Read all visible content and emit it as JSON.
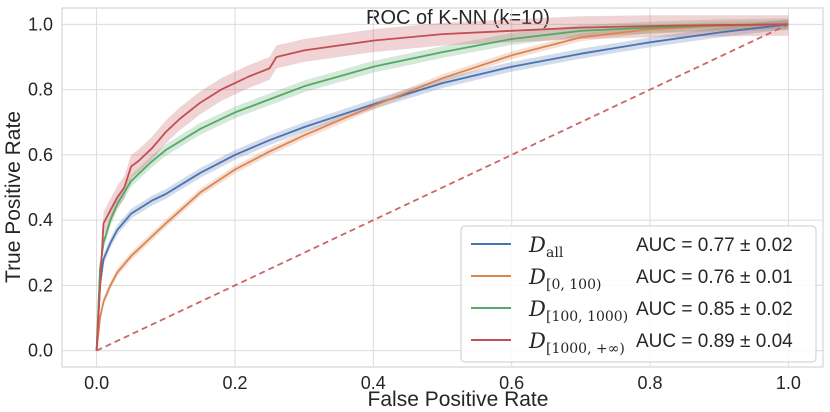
{
  "chart_data": {
    "type": "line",
    "title": "ROC of K-NN (k=10)",
    "xlabel": "False Positive Rate",
    "ylabel": "True Positive Rate",
    "xlim": [
      -0.05,
      1.05
    ],
    "ylim": [
      -0.05,
      1.05
    ],
    "xticks": [
      0.0,
      0.2,
      0.4,
      0.6,
      0.8,
      1.0
    ],
    "yticks": [
      0.0,
      0.2,
      0.4,
      0.6,
      0.8,
      1.0
    ],
    "xtick_labels": [
      "0.0",
      "0.2",
      "0.4",
      "0.6",
      "0.8",
      "1.0"
    ],
    "ytick_labels": [
      "0.0",
      "0.2",
      "0.4",
      "0.6",
      "0.8",
      "1.0"
    ],
    "grid": true,
    "legend_position": "lower-right",
    "series": [
      {
        "name": "D_all",
        "label_main": "D",
        "label_sub": "all",
        "auc": "AUC = 0.77 ± 0.02",
        "color": "#4c72b0",
        "x": [
          0,
          0.005,
          0.01,
          0.02,
          0.03,
          0.05,
          0.08,
          0.1,
          0.15,
          0.2,
          0.25,
          0.3,
          0.35,
          0.4,
          0.5,
          0.6,
          0.7,
          0.8,
          0.9,
          1.0
        ],
        "y": [
          0,
          0.2,
          0.28,
          0.33,
          0.37,
          0.42,
          0.46,
          0.48,
          0.545,
          0.6,
          0.645,
          0.685,
          0.72,
          0.755,
          0.82,
          0.87,
          0.91,
          0.945,
          0.975,
          1.0
        ],
        "band": 0.015
      },
      {
        "name": "D_[0,100)",
        "label_main": "D",
        "label_sub": "[0, 100)",
        "auc": "AUC = 0.76 ± 0.01",
        "color": "#dd8452",
        "x": [
          0,
          0.005,
          0.01,
          0.02,
          0.03,
          0.05,
          0.08,
          0.1,
          0.15,
          0.2,
          0.25,
          0.3,
          0.35,
          0.4,
          0.5,
          0.6,
          0.7,
          0.8,
          0.9,
          1.0
        ],
        "y": [
          0,
          0.1,
          0.15,
          0.2,
          0.24,
          0.29,
          0.35,
          0.39,
          0.485,
          0.555,
          0.61,
          0.66,
          0.705,
          0.75,
          0.835,
          0.905,
          0.96,
          0.985,
          0.995,
          1.0
        ],
        "band": 0.012
      },
      {
        "name": "D_[100,1000)",
        "label_main": "D",
        "label_sub": "[100, 1000)",
        "auc": "AUC = 0.85 ± 0.02",
        "color": "#55a868",
        "x": [
          0,
          0.005,
          0.01,
          0.02,
          0.03,
          0.05,
          0.08,
          0.1,
          0.15,
          0.2,
          0.25,
          0.3,
          0.35,
          0.4,
          0.5,
          0.6,
          0.7,
          0.8,
          0.9,
          1.0
        ],
        "y": [
          0,
          0.25,
          0.33,
          0.4,
          0.45,
          0.52,
          0.58,
          0.615,
          0.68,
          0.73,
          0.77,
          0.81,
          0.84,
          0.87,
          0.915,
          0.955,
          0.98,
          0.99,
          0.997,
          1.0
        ],
        "band": 0.018
      },
      {
        "name": "D_[1000,+inf)",
        "label_main": "D",
        "label_sub": "[1000, +∞)",
        "auc": "AUC = 0.89 ± 0.04",
        "color": "#c44e52",
        "x": [
          0,
          0.01,
          0.02,
          0.03,
          0.04,
          0.05,
          0.06,
          0.08,
          0.1,
          0.12,
          0.15,
          0.18,
          0.2,
          0.22,
          0.25,
          0.26,
          0.3,
          0.35,
          0.4,
          0.5,
          0.6,
          0.7,
          0.8,
          0.9,
          1.0
        ],
        "y": [
          0,
          0.39,
          0.43,
          0.47,
          0.5,
          0.565,
          0.58,
          0.62,
          0.67,
          0.71,
          0.76,
          0.8,
          0.82,
          0.84,
          0.865,
          0.9,
          0.92,
          0.935,
          0.95,
          0.97,
          0.98,
          0.99,
          0.995,
          0.998,
          1.0
        ],
        "band": 0.035
      }
    ],
    "reference_line": {
      "name": "chance",
      "x": [
        0,
        1
      ],
      "y": [
        0,
        1
      ],
      "color": "#cc6666",
      "style": "dashed"
    }
  }
}
